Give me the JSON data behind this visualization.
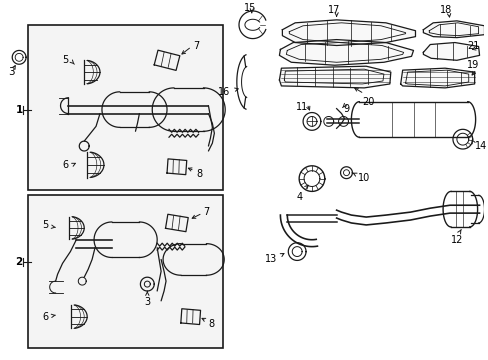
{
  "bg_color": "#ffffff",
  "line_color": "#1a1a1a",
  "box_fill": "#f2f2f2",
  "font_size": 7.5,
  "lw": 0.9
}
